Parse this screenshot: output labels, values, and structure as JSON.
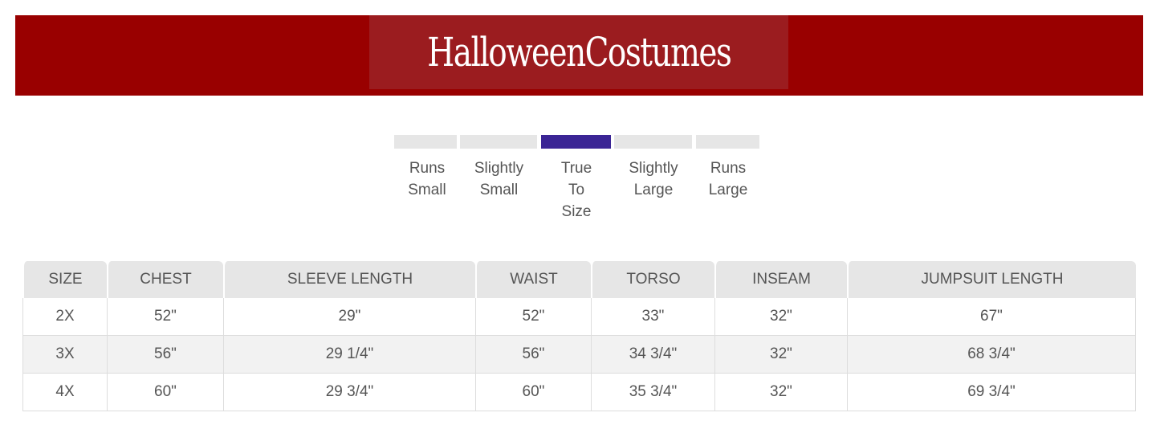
{
  "header": {
    "logo_text": "HalloweenCostumes",
    "bg": "#990000"
  },
  "fit_scale": {
    "selected_index": 2,
    "accent": "#3b2595",
    "labels": [
      "Runs Small",
      "Slightly Small",
      "True To Size",
      "Slightly Large",
      "Runs Large"
    ]
  },
  "table": {
    "headers": [
      "SIZE",
      "CHEST",
      "SLEEVE LENGTH",
      "WAIST",
      "TORSO",
      "INSEAM",
      "JUMPSUIT LENGTH"
    ],
    "rows": [
      [
        "2X",
        "52\"",
        "29\"",
        "52\"",
        "33\"",
        "32\"",
        "67\""
      ],
      [
        "3X",
        "56\"",
        "29 1/4\"",
        "56\"",
        "34 3/4\"",
        "32\"",
        "68 3/4\""
      ],
      [
        "4X",
        "60\"",
        "29 3/4\"",
        "60\"",
        "35 3/4\"",
        "32\"",
        "69 3/4\""
      ]
    ]
  }
}
